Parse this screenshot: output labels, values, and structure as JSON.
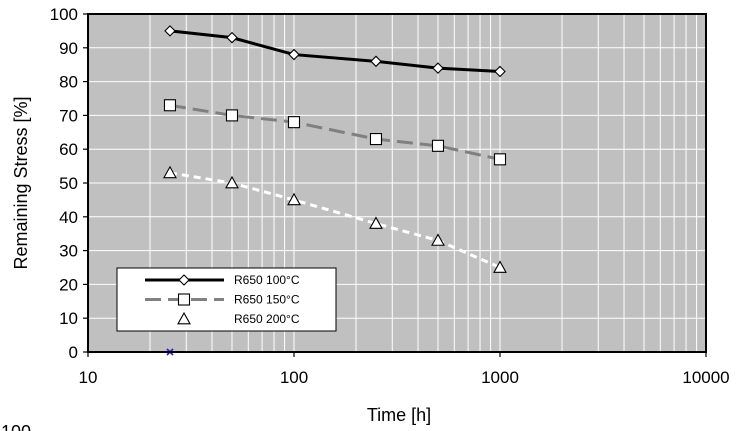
{
  "chart_data": {
    "type": "line",
    "title": "",
    "xlabel": "Time [h]",
    "ylabel": "Remaining Stress [%]",
    "xscale": "log",
    "xlim": [
      10,
      10000
    ],
    "ylim": [
      0,
      100
    ],
    "x_ticks": [
      10,
      100,
      1000,
      10000
    ],
    "x_tick_labels": [
      "10",
      "100",
      "1000",
      "10000"
    ],
    "y_ticks": [
      0,
      10,
      20,
      30,
      40,
      50,
      60,
      70,
      80,
      90,
      100
    ],
    "y_tick_labels": [
      "0",
      "10",
      "20",
      "30",
      "40",
      "50",
      "60",
      "70",
      "80",
      "90",
      "100"
    ],
    "grid": true,
    "background_color": "#c0c0c0",
    "grid_color": "#ffffff",
    "legend_position": "bottom-left",
    "series": [
      {
        "name": "R650 100°C",
        "x": [
          25,
          50,
          100,
          250,
          500,
          1000
        ],
        "y": [
          95,
          93,
          88,
          86,
          84,
          83
        ],
        "color": "#000000",
        "line_style": "solid",
        "marker": "diamond"
      },
      {
        "name": "R650 150°C",
        "x": [
          25,
          50,
          100,
          250,
          500,
          1000
        ],
        "y": [
          73,
          70,
          68,
          63,
          61,
          57
        ],
        "color": "#808080",
        "line_style": "dashed",
        "marker": "square"
      },
      {
        "name": "R650 200°C",
        "x": [
          25,
          50,
          100,
          250,
          500,
          1000
        ],
        "y": [
          53,
          50,
          45,
          38,
          33,
          25
        ],
        "color": "#ffffff",
        "line_style": "dashed",
        "marker": "triangle"
      }
    ],
    "extra_points": [
      {
        "x": 25,
        "y": 0,
        "marker": "asterisk",
        "color": "#1f1fcc"
      }
    ],
    "stray_text": "100"
  }
}
